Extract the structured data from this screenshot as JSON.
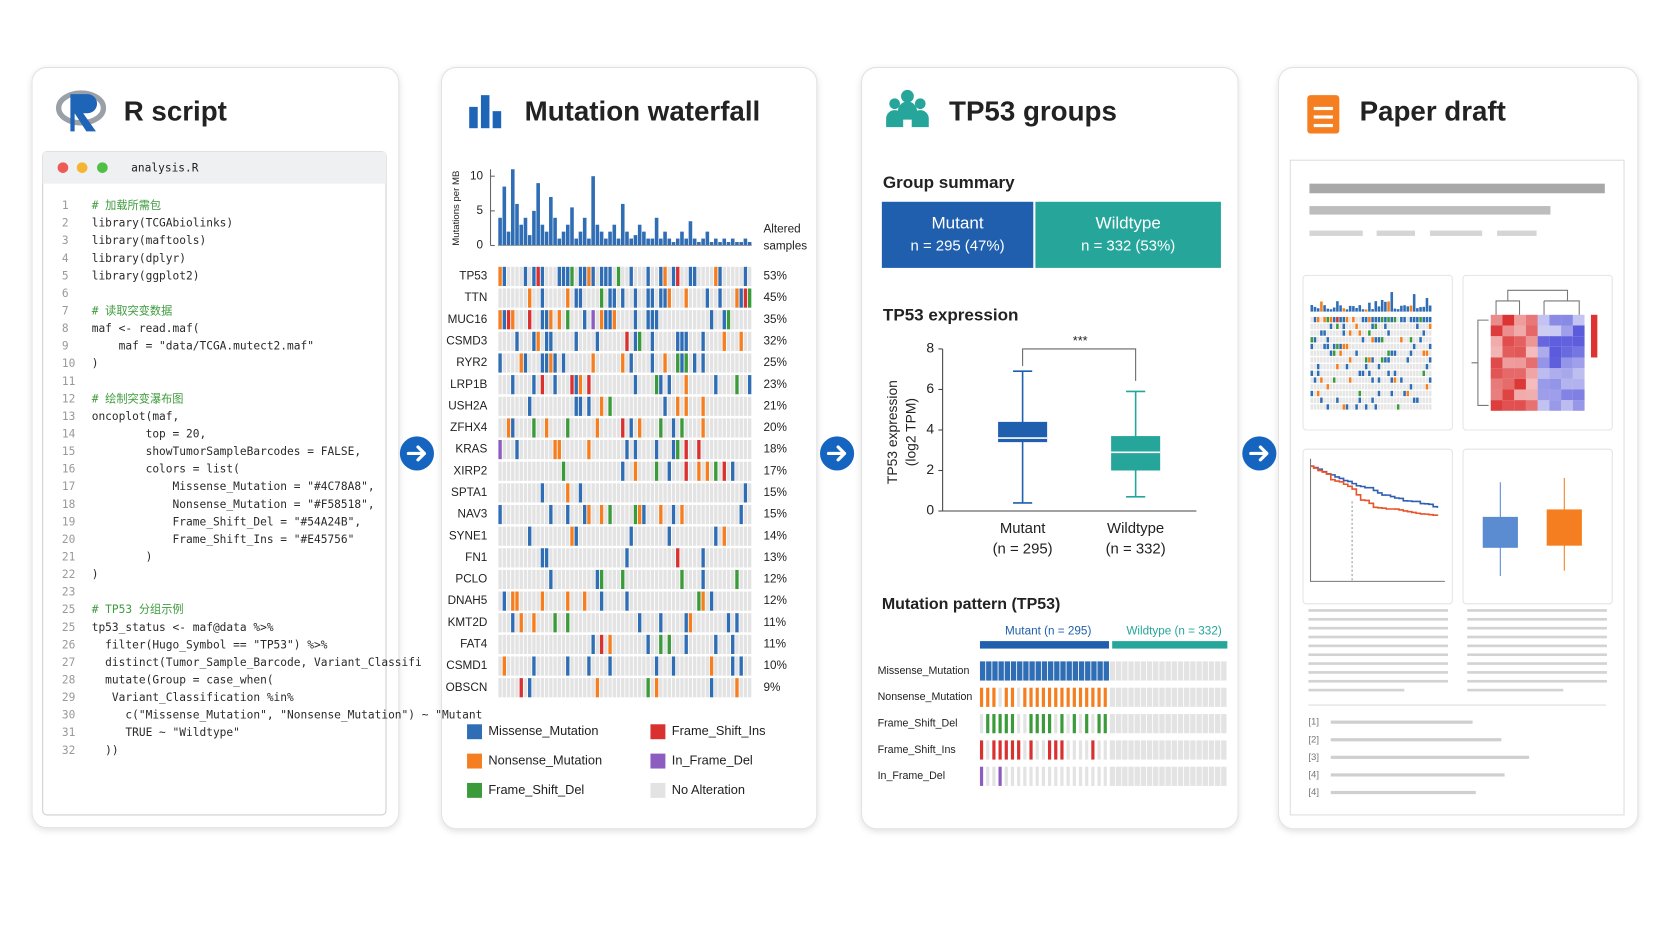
{
  "r_script": {
    "title": "R script",
    "filename": "analysis.R",
    "lines": [
      {
        "n": 1,
        "code": "# 加载所需包"
      },
      {
        "n": 2,
        "code": "library(TCGAbiolinks)"
      },
      {
        "n": 3,
        "code": "library(maftools)"
      },
      {
        "n": 4,
        "code": "library(dplyr)"
      },
      {
        "n": 5,
        "code": "library(ggplot2)"
      },
      {
        "n": 6
      },
      {
        "n": 7,
        "code": "# 读取突变数据"
      },
      {
        "n": 8,
        "code": "maf <- read.maf("
      },
      {
        "n": 9,
        "code": "    maf = \"data/TCGA.mutect2.maf\""
      },
      {
        "n": 10,
        "code": ")"
      },
      {
        "n": 11
      },
      {
        "n": 12,
        "code": "# 绘制突变瀑布图"
      },
      {
        "n": 13,
        "code": "oncoplot(maf,"
      },
      {
        "n": 14,
        "code": "        top = 20,"
      },
      {
        "n": 15,
        "code": "        showTumorSampleBarcodes = FALSE,"
      },
      {
        "n": 16,
        "code": "        colors = list("
      },
      {
        "n": 17,
        "code": "            Missense_Mutation = \"#4C78A8\","
      },
      {
        "n": 18,
        "code": "            Nonsense_Mutation = \"#F58518\","
      },
      {
        "n": 19,
        "code": "            Frame_Shift_Del = \"#54A24B\","
      },
      {
        "n": 20,
        "code": "            Frame_Shift_Ins = \"#E45756\""
      },
      {
        "n": 21,
        "code": "        )"
      },
      {
        "n": 22,
        "code": ")"
      },
      {
        "n": 23
      },
      {
        "n": 25,
        "code": "# TP53 分组示例"
      },
      {
        "n": 25,
        "code": "tp53_status <- maf@data %>%"
      },
      {
        "n": 26,
        "code": "  filter(Hugo_Symbol == \"TP53\") %>%"
      },
      {
        "n": 27,
        "code": "  distinct(Tumor_Sample_Barcode, Variant_Classifi"
      },
      {
        "n": 28,
        "code": "  mutate(Group = case_when("
      },
      {
        "n": 29,
        "code": "   Variant_Classification %in%"
      },
      {
        "n": 30,
        "code": "     c(\"Missense_Mutation\", \"Nonsense_Mutation\") ~ \"Mutant"
      },
      {
        "n": 31,
        "code": "     TRUE ~ \"Wildtype\""
      },
      {
        "n": 32,
        "code": "  ))"
      }
    ]
  },
  "waterfall": {
    "title": "Mutation waterfall",
    "burden": {
      "axis_label": "Mutations per MB",
      "ylim": [
        0,
        11
      ],
      "yticks": [
        0,
        5,
        10
      ],
      "color": "#2f6db5",
      "values": [
        4,
        8.5,
        2,
        11,
        6,
        3,
        4,
        1.5,
        5,
        9,
        3,
        2,
        7,
        4,
        1,
        2,
        3,
        5.5,
        1,
        2,
        4,
        1,
        10,
        3,
        2,
        1,
        2,
        3,
        1,
        6,
        2,
        1,
        1.5,
        3,
        2,
        1,
        1,
        4,
        1,
        2,
        1,
        0.5,
        1,
        2,
        1,
        3.5,
        1,
        0.5,
        1,
        2,
        0.5,
        1,
        0.5,
        1,
        0.5,
        1,
        0.5,
        0.5,
        1,
        0.5
      ]
    },
    "altered_label": [
      "Altered",
      "samples"
    ],
    "genes": [
      {
        "name": "TP53",
        "pct": 53,
        "label": "53%"
      },
      {
        "name": "TTN",
        "pct": 45,
        "label": "45%"
      },
      {
        "name": "MUC16",
        "pct": 35,
        "label": "35%"
      },
      {
        "name": "CSMD3",
        "pct": 32,
        "label": "32%"
      },
      {
        "name": "RYR2",
        "pct": 25,
        "label": "25%"
      },
      {
        "name": "LRP1B",
        "pct": 23,
        "label": "23%"
      },
      {
        "name": "USH2A",
        "pct": 21,
        "label": "21%"
      },
      {
        "name": "ZFHX4",
        "pct": 20,
        "label": "20%"
      },
      {
        "name": "KRAS",
        "pct": 18,
        "label": "18%"
      },
      {
        "name": "XIRP2",
        "pct": 17,
        "label": "17%"
      },
      {
        "name": "SPTA1",
        "pct": 15,
        "label": "15%"
      },
      {
        "name": "NAV3",
        "pct": 15,
        "label": "15%"
      },
      {
        "name": "SYNE1",
        "pct": 14,
        "label": "14%"
      },
      {
        "name": "FN1",
        "pct": 13,
        "label": "13%"
      },
      {
        "name": "PCLO",
        "pct": 12,
        "label": "12%"
      },
      {
        "name": "DNAH5",
        "pct": 12,
        "label": "12%"
      },
      {
        "name": "KMT2D",
        "pct": 11,
        "label": "11%"
      },
      {
        "name": "FAT4",
        "pct": 11,
        "label": "11%"
      },
      {
        "name": "CSMD1",
        "pct": 10,
        "label": "10%"
      },
      {
        "name": "OBSCN",
        "pct": 9,
        "label": "9%"
      }
    ],
    "legend": [
      {
        "name": "Missense_Mutation",
        "color": "#2f6db5"
      },
      {
        "name": "Nonsense_Mutation",
        "color": "#f57f20"
      },
      {
        "name": "Frame_Shift_Del",
        "color": "#3b9b3b"
      },
      {
        "name": "Frame_Shift_Ins",
        "color": "#d93030"
      },
      {
        "name": "In_Frame_Del",
        "color": "#8c5cc0"
      },
      {
        "name": "No Alteration",
        "color": "#e3e3e3"
      }
    ]
  },
  "tp53_groups": {
    "title": "TP53 groups",
    "summary_title": "Group summary",
    "groups": [
      {
        "name": "Mutant",
        "n_label": "n = 295 (47%)",
        "color": "#1f5fad"
      },
      {
        "name": "Wildtype",
        "n_label": "n = 332 (53%)",
        "color": "#26a69a"
      }
    ],
    "expression": {
      "title": "TP53 expression",
      "y_label": [
        "TP53 expression",
        "(log2 TPM)"
      ],
      "ylim": [
        0,
        8
      ],
      "yticks": [
        0,
        2,
        4,
        6,
        8
      ],
      "significance": "***",
      "boxes": [
        {
          "name": "Mutant",
          "n": "(n = 295)",
          "low": 0.4,
          "q1": 3.4,
          "median": 3.6,
          "q3": 4.4,
          "high": 6.9,
          "color": "#1f5fad"
        },
        {
          "name": "Wildtype",
          "n": "(n = 332)",
          "low": 0.7,
          "q1": 2.0,
          "median": 2.9,
          "q3": 3.7,
          "high": 5.9,
          "color": "#26a69a"
        }
      ]
    },
    "pattern": {
      "title": "Mutation pattern (TP53)",
      "headers": [
        "Mutant (n = 295)",
        "Wildtype (n = 332)"
      ],
      "rows": [
        "Missense_Mutation",
        "Nonsense_Mutation",
        "Frame_Shift_Del",
        "Frame_Shift_Ins",
        "In_Frame_Del"
      ]
    }
  },
  "paper_draft": {
    "title": "Paper draft",
    "references": [
      "[1]",
      "[2]",
      "[3]",
      "[4]",
      "[4]"
    ]
  }
}
